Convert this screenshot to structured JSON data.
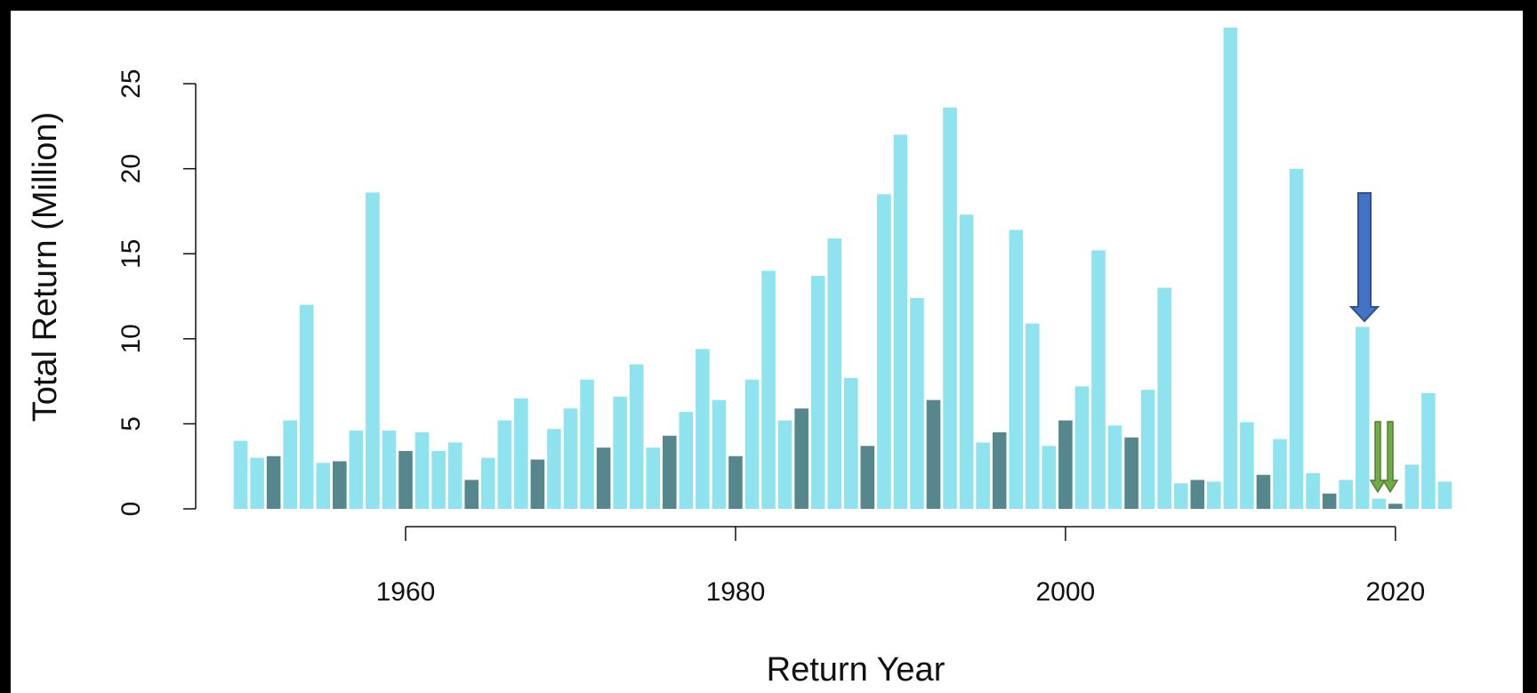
{
  "chart_data": {
    "type": "bar",
    "x_label": "Return Year",
    "y_label": "Total Return (Million)",
    "x": [
      1950,
      1951,
      1952,
      1953,
      1954,
      1955,
      1956,
      1957,
      1958,
      1959,
      1960,
      1961,
      1962,
      1963,
      1964,
      1965,
      1966,
      1967,
      1968,
      1969,
      1970,
      1971,
      1972,
      1973,
      1974,
      1975,
      1976,
      1977,
      1978,
      1979,
      1980,
      1981,
      1982,
      1983,
      1984,
      1985,
      1986,
      1987,
      1988,
      1989,
      1990,
      1991,
      1992,
      1993,
      1994,
      1995,
      1996,
      1997,
      1998,
      1999,
      2000,
      2001,
      2002,
      2003,
      2004,
      2005,
      2006,
      2007,
      2008,
      2009,
      2010,
      2011,
      2012,
      2013,
      2014,
      2015,
      2016,
      2017,
      2018,
      2019,
      2020,
      2021,
      2022,
      2023
    ],
    "values": [
      4.0,
      3.0,
      3.1,
      5.2,
      12.0,
      2.7,
      2.8,
      4.6,
      18.6,
      4.6,
      3.4,
      4.5,
      3.4,
      3.9,
      1.7,
      3.0,
      5.2,
      6.5,
      2.9,
      4.7,
      5.9,
      7.6,
      3.6,
      6.6,
      8.5,
      3.6,
      4.3,
      5.7,
      9.4,
      6.4,
      3.1,
      7.6,
      14.0,
      5.2,
      5.9,
      13.7,
      15.9,
      7.7,
      3.7,
      18.5,
      22.0,
      12.4,
      6.4,
      23.6,
      17.3,
      3.9,
      4.5,
      16.4,
      10.9,
      3.7,
      5.2,
      7.2,
      15.2,
      4.9,
      4.2,
      7.0,
      13.0,
      1.5,
      1.7,
      1.6,
      28.3,
      5.1,
      2.0,
      4.1,
      20.0,
      2.1,
      0.9,
      1.7,
      10.7,
      0.6,
      0.3,
      2.6,
      6.8,
      1.6
    ],
    "color": "#8ee3ef",
    "highlight_color": "#56878d",
    "highlight_every": 4,
    "highlight_start": 1952,
    "xlim": [
      1949,
      2024
    ],
    "xticks": [
      1960,
      1980,
      2000,
      2020
    ],
    "ylim": [
      0,
      28.3
    ],
    "yticks": [
      0,
      5,
      10,
      15,
      20,
      25
    ],
    "grid": false
  }
}
